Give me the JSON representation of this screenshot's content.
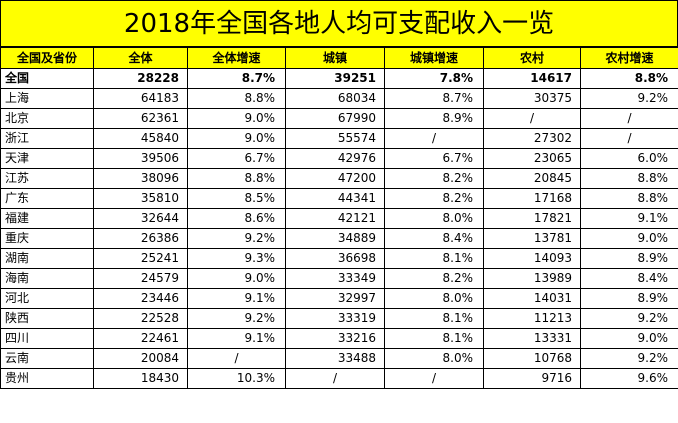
{
  "title": "2018年全国各地人均可支配收入一览",
  "headers": [
    "全国及省份",
    "全体",
    "全体增速",
    "城镇",
    "城镇增速",
    "农村",
    "农村增速"
  ],
  "rows": [
    [
      "全国",
      "28228",
      "8.7%",
      "39251",
      "7.8%",
      "14617",
      "8.8%"
    ],
    [
      "上海",
      "64183",
      "8.8%",
      "68034",
      "8.7%",
      "30375",
      "9.2%"
    ],
    [
      "北京",
      "62361",
      "9.0%",
      "67990",
      "8.9%",
      "/",
      "/"
    ],
    [
      "浙江",
      "45840",
      "9.0%",
      "55574",
      "/",
      "27302",
      "/"
    ],
    [
      "天津",
      "39506",
      "6.7%",
      "42976",
      "6.7%",
      "23065",
      "6.0%"
    ],
    [
      "江苏",
      "38096",
      "8.8%",
      "47200",
      "8.2%",
      "20845",
      "8.8%"
    ],
    [
      "广东",
      "35810",
      "8.5%",
      "44341",
      "8.2%",
      "17168",
      "8.8%"
    ],
    [
      "福建",
      "32644",
      "8.6%",
      "42121",
      "8.0%",
      "17821",
      "9.1%"
    ],
    [
      "重庆",
      "26386",
      "9.2%",
      "34889",
      "8.4%",
      "13781",
      "9.0%"
    ],
    [
      "湖南",
      "25241",
      "9.3%",
      "36698",
      "8.1%",
      "14093",
      "8.9%"
    ],
    [
      "海南",
      "24579",
      "9.0%",
      "33349",
      "8.2%",
      "13989",
      "8.4%"
    ],
    [
      "河北",
      "23446",
      "9.1%",
      "32997",
      "8.0%",
      "14031",
      "8.9%"
    ],
    [
      "陕西",
      "22528",
      "9.2%",
      "33319",
      "8.1%",
      "11213",
      "9.2%"
    ],
    [
      "四川",
      "22461",
      "9.1%",
      "33216",
      "8.1%",
      "13331",
      "9.0%"
    ],
    [
      "云南",
      "20084",
      "/",
      "33488",
      "8.0%",
      "10768",
      "9.2%"
    ],
    [
      "贵州",
      "18430",
      "10.3%",
      "/",
      "/",
      "9716",
      "9.6%"
    ]
  ],
  "colors": {
    "header_bg": "#ffff00",
    "border": "#000000"
  }
}
